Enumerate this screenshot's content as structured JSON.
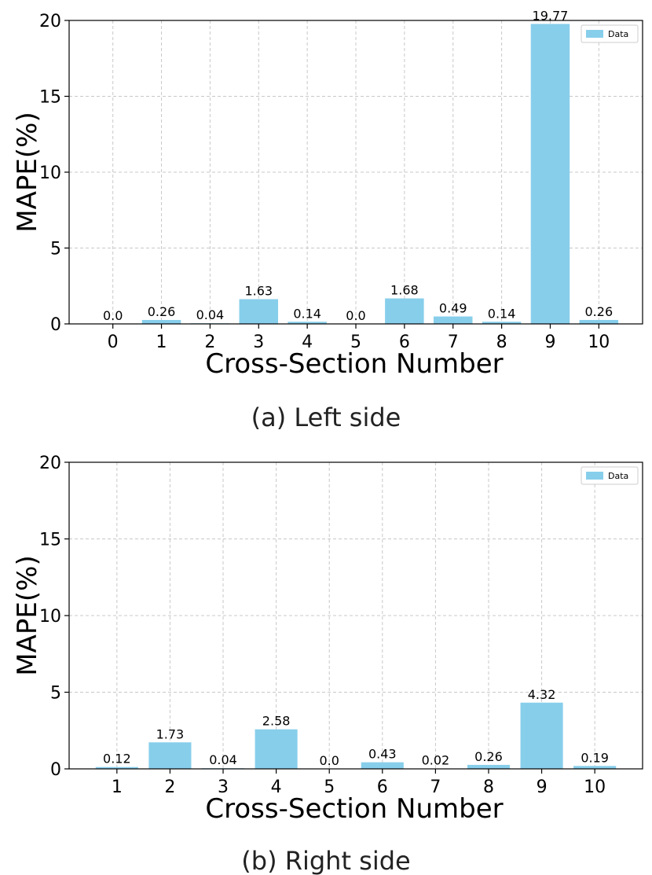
{
  "chart_data": [
    {
      "type": "bar",
      "caption": "(a) Left side",
      "categories": [
        "0",
        "1",
        "2",
        "3",
        "4",
        "5",
        "6",
        "7",
        "8",
        "9",
        "10"
      ],
      "series": [
        {
          "name": "Data",
          "values": [
            0.0,
            0.26,
            0.04,
            1.63,
            0.14,
            0.0,
            1.68,
            0.49,
            0.14,
            19.77,
            0.26
          ]
        }
      ],
      "value_labels": [
        "0.0",
        "0.26",
        "0.04",
        "1.63",
        "0.14",
        "0.0",
        "1.68",
        "0.49",
        "0.14",
        "19.77",
        "0.26"
      ],
      "xlabel": "Cross-Section Number",
      "ylabel": "MAPE(%)",
      "ylim": [
        0,
        20
      ],
      "yticks": [
        "0",
        "5",
        "10",
        "15",
        "20"
      ],
      "grid": true,
      "legend_position": "top-right",
      "color": "#87ceeb"
    },
    {
      "type": "bar",
      "caption": "(b) Right side",
      "categories": [
        "1",
        "2",
        "3",
        "4",
        "5",
        "6",
        "7",
        "8",
        "9",
        "10"
      ],
      "series": [
        {
          "name": "Data",
          "values": [
            0.12,
            1.73,
            0.04,
            2.58,
            0.0,
            0.43,
            0.02,
            0.26,
            4.32,
            0.19
          ]
        }
      ],
      "value_labels": [
        "0.12",
        "1.73",
        "0.04",
        "2.58",
        "0.0",
        "0.43",
        "0.02",
        "0.26",
        "4.32",
        "0.19"
      ],
      "xlabel": "Cross-Section Number",
      "ylabel": "MAPE(%)",
      "ylim": [
        0,
        20
      ],
      "yticks": [
        "0",
        "5",
        "10",
        "15",
        "20"
      ],
      "grid": true,
      "legend_position": "top-right",
      "color": "#87ceeb"
    }
  ]
}
